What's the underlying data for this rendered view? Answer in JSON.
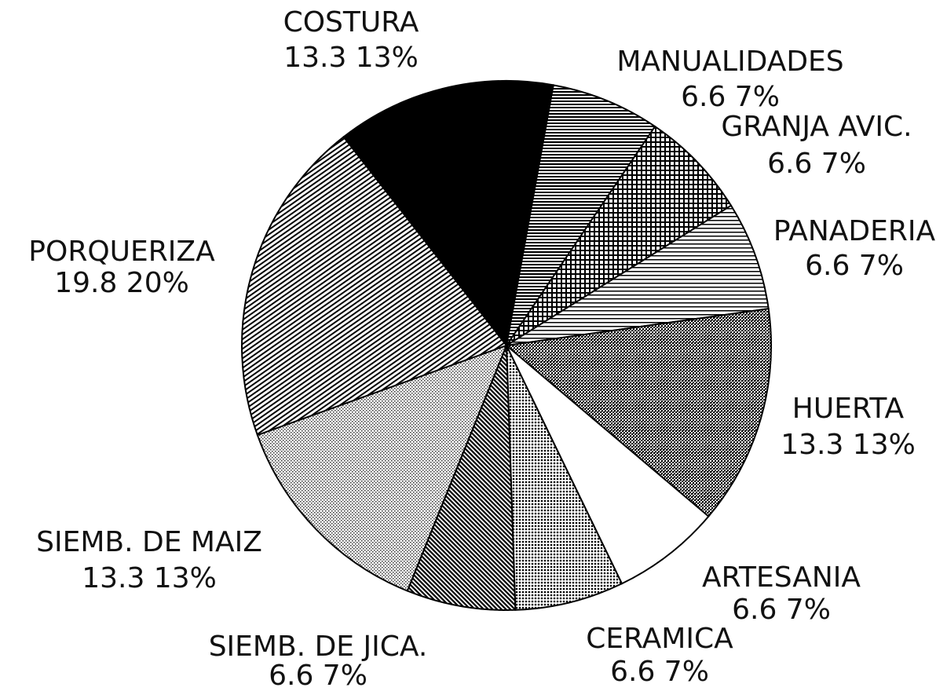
{
  "chart_data": {
    "type": "pie",
    "categories": [
      "COSTURA",
      "MANUALIDADES",
      "GRANJA AVIC.",
      "PANADERIA",
      "HUERTA",
      "ARTESANIA",
      "CERAMICA",
      "SIEMB. DE JICA.",
      "SIEMB. DE MAIZ",
      "PORQUERIZA"
    ],
    "values": [
      13.3,
      6.6,
      6.6,
      6.6,
      13.3,
      6.6,
      6.6,
      6.6,
      13.3,
      19.8
    ],
    "value_labels": [
      "13.3 13%",
      "6.6 7%",
      "6.6 7%",
      "6.6 7%",
      "13.3 13%",
      "6.6 7%",
      "6.6 7%",
      "6.6 7%",
      "13.3 13%",
      "19.8 20%"
    ]
  }
}
